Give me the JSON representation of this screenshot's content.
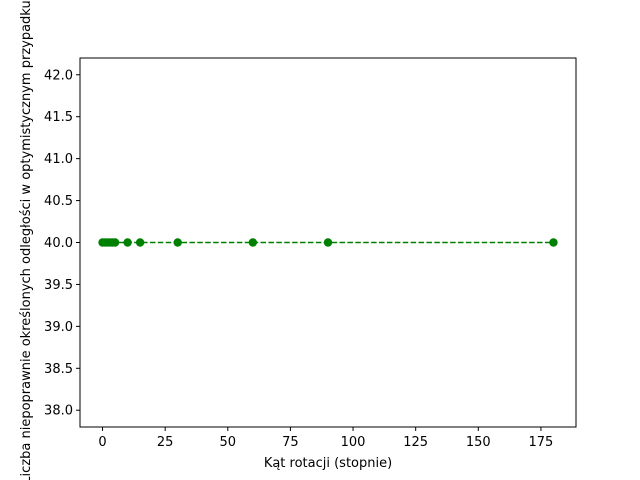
{
  "chart_data": {
    "type": "line",
    "title": "",
    "xlabel": "Kąt rotacji (stopnie)",
    "ylabel": "Liczba niepoprawnie określonych odległości w optymistycznym przypadku",
    "xlim": [
      -9,
      189
    ],
    "ylim": [
      37.8,
      42.2
    ],
    "x_ticks": [
      0,
      25,
      50,
      75,
      100,
      125,
      150,
      175
    ],
    "y_ticks": [
      38.0,
      38.5,
      39.0,
      39.5,
      40.0,
      40.5,
      41.0,
      41.5,
      42.0
    ],
    "grid": false,
    "series": [
      {
        "x": [
          0,
          1,
          2,
          3,
          4,
          5,
          10,
          15,
          30,
          60,
          90,
          180
        ],
        "y": [
          40,
          40,
          40,
          40,
          40,
          40,
          40,
          40,
          40,
          40,
          40,
          40
        ],
        "color": "#008000",
        "linestyle": "dashed",
        "marker": "circle"
      }
    ]
  }
}
